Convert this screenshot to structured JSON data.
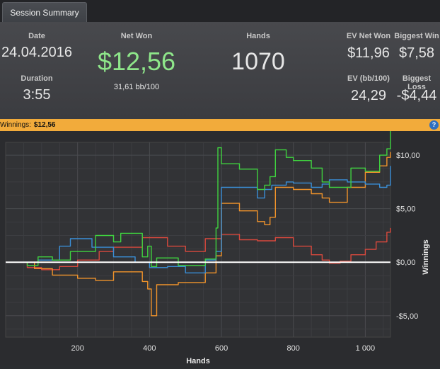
{
  "tab": {
    "label": "Session Summary"
  },
  "summary": {
    "date_label": "Date",
    "date_value": "24.04.2016",
    "duration_label": "Duration",
    "duration_value": "3:55",
    "net_won_label": "Net Won",
    "net_won_value": "$12,56",
    "bb100": "31,61 bb/100",
    "hands_label": "Hands",
    "hands_value": "1070",
    "ev_net_won_label": "EV Net Won",
    "ev_net_won_value": "$11,96",
    "biggest_win_label": "Biggest Win",
    "biggest_win_value": "$7,58",
    "ev_bb100_label": "EV (bb/100)",
    "ev_bb100_value": "24,29",
    "biggest_loss_label": "Biggest Loss",
    "biggest_loss_value": "-$4,44"
  },
  "winbar": {
    "label": "Winnings:",
    "value": "$12,56",
    "help": "?"
  },
  "colors": {
    "green": "#3fd23f",
    "blue": "#3a8fd8",
    "orange": "#f0932b",
    "red": "#d9493d",
    "zero": "#ffffff",
    "net_won": "#8ee68a"
  },
  "chart_data": {
    "type": "line",
    "xlabel": "Hands",
    "ylabel": "Winnings",
    "xlim": [
      0,
      1070
    ],
    "ylim": [
      -7,
      11.2
    ],
    "x_ticks": [
      200,
      400,
      600,
      800,
      1000
    ],
    "x_tick_labels": [
      "200",
      "400",
      "600",
      "800",
      "1 000"
    ],
    "y_ticks": [
      -5,
      0,
      5,
      10
    ],
    "y_tick_labels": [
      "-$5,00",
      "$0,00",
      "$5,00",
      "$10,00"
    ],
    "grid": true,
    "series": [
      {
        "color": "green",
        "x": [
          0,
          60,
          90,
          130,
          180,
          250,
          300,
          320,
          380,
          395,
          405,
          420,
          480,
          555,
          585,
          590,
          600,
          650,
          700,
          720,
          735,
          750,
          780,
          800,
          850,
          880,
          900,
          960,
          1000,
          1040,
          1060,
          1070
        ],
        "y": [
          0,
          -0.3,
          0.5,
          0.2,
          1.0,
          2.5,
          1.9,
          2.7,
          0.5,
          1.5,
          -0.4,
          0.4,
          -0.3,
          0.3,
          3.2,
          10.7,
          9.2,
          8.7,
          6.8,
          7.2,
          8.0,
          10.5,
          9.8,
          9.5,
          8.8,
          7.5,
          7.0,
          8.8,
          8.5,
          10.0,
          10.6,
          12.56
        ]
      },
      {
        "color": "blue",
        "x": [
          0,
          90,
          150,
          180,
          240,
          300,
          360,
          400,
          450,
          500,
          555,
          585,
          600,
          650,
          700,
          720,
          740,
          780,
          800,
          850,
          880,
          900,
          950,
          1000,
          1040,
          1060,
          1070
        ],
        "y": [
          0,
          0.2,
          1.5,
          2.2,
          1.4,
          0.5,
          0.0,
          -0.5,
          -0.4,
          -1.0,
          0.2,
          1.0,
          7.0,
          7.0,
          6.0,
          6.8,
          7.2,
          7.5,
          7.4,
          7.0,
          7.3,
          7.7,
          7.5,
          7.3,
          7.0,
          7.2,
          9.0
        ]
      },
      {
        "color": "orange",
        "x": [
          0,
          80,
          130,
          200,
          250,
          300,
          380,
          395,
          405,
          420,
          480,
          555,
          585,
          600,
          650,
          700,
          720,
          735,
          750,
          800,
          850,
          880,
          900,
          950,
          1000,
          1040,
          1060,
          1070
        ],
        "y": [
          0,
          -0.6,
          -1.2,
          -1.5,
          -1.7,
          -0.9,
          -1.8,
          -2.5,
          -5.0,
          -2.1,
          -1.9,
          -1.0,
          0.6,
          5.5,
          4.8,
          3.8,
          3.5,
          4.2,
          7.0,
          6.8,
          6.4,
          6.0,
          5.6,
          7.0,
          8.4,
          9.0,
          9.8,
          10.3
        ]
      },
      {
        "color": "red",
        "x": [
          0,
          60,
          100,
          150,
          200,
          260,
          300,
          380,
          450,
          500,
          555,
          600,
          650,
          700,
          750,
          800,
          850,
          880,
          900,
          930,
          960,
          1000,
          1030,
          1060,
          1070
        ],
        "y": [
          0,
          -0.5,
          -0.7,
          -0.4,
          0.2,
          1.0,
          1.4,
          2.3,
          1.5,
          1.0,
          2.2,
          2.6,
          2.1,
          2.0,
          2.3,
          1.5,
          0.7,
          0.2,
          -0.1,
          0.1,
          0.7,
          1.2,
          1.9,
          2.8,
          3.2
        ]
      },
      {
        "color": "zero",
        "x": [
          0,
          1070
        ],
        "y": [
          0,
          0
        ]
      }
    ]
  }
}
